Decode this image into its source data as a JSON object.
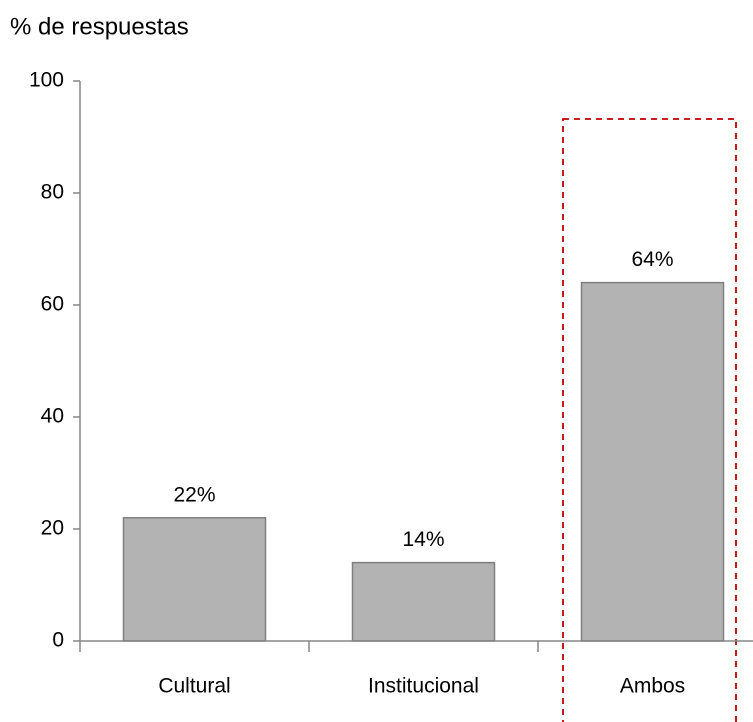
{
  "chart_data": {
    "type": "bar",
    "ylabel": "% de respuestas",
    "categories": [
      "Cultural",
      "Institucional",
      "Ambos"
    ],
    "values": [
      22,
      14,
      64
    ],
    "value_labels": [
      "22%",
      "14%",
      "64%"
    ],
    "color": "#b3b3b3",
    "ylim": [
      0,
      100
    ],
    "yticks": [
      0,
      20,
      40,
      60,
      80,
      100
    ],
    "grid": false
  }
}
